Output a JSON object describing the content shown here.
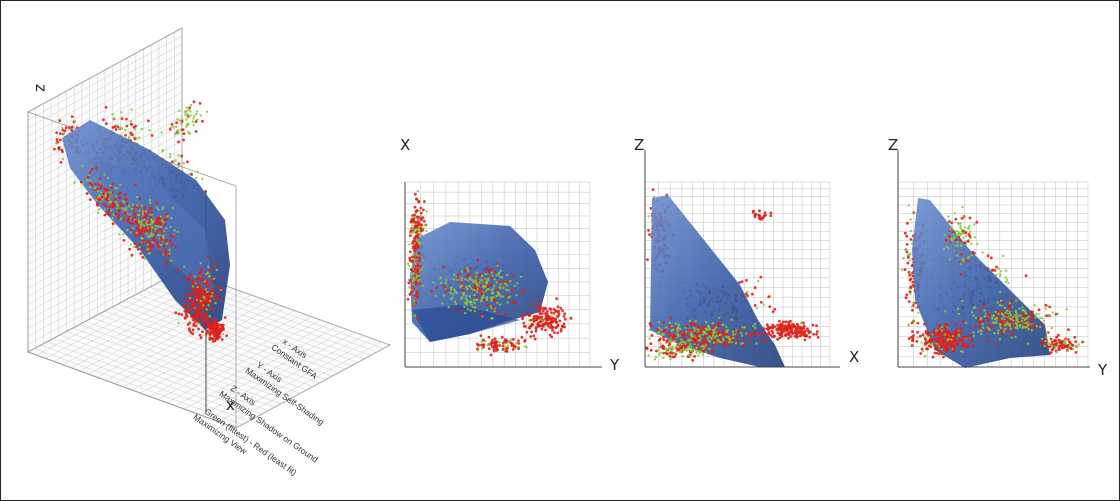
{
  "iso_view": {
    "z_label": "z",
    "x_label": "x",
    "legend": [
      "x - Axis",
      "Constant GFA",
      "Y - Axis",
      "Maximizing Self-Shading",
      "Z - Axis",
      "Maximizing Shadow on Ground",
      "Green (fittest) - Red (least fit)",
      "Maximizing View"
    ]
  },
  "panel_xy": {
    "vertical_label": "X",
    "horizontal_label": "Y"
  },
  "panel_zx": {
    "vertical_label": "Z",
    "horizontal_label": "X"
  },
  "panel_zy": {
    "vertical_label": "Z",
    "horizontal_label": "Y"
  },
  "colors": {
    "fittest": "#8cc63f",
    "least_fit": "#e0201b",
    "surface": "#3a5fa8",
    "grid": "#bfbfbf",
    "axis": "#444444"
  }
}
